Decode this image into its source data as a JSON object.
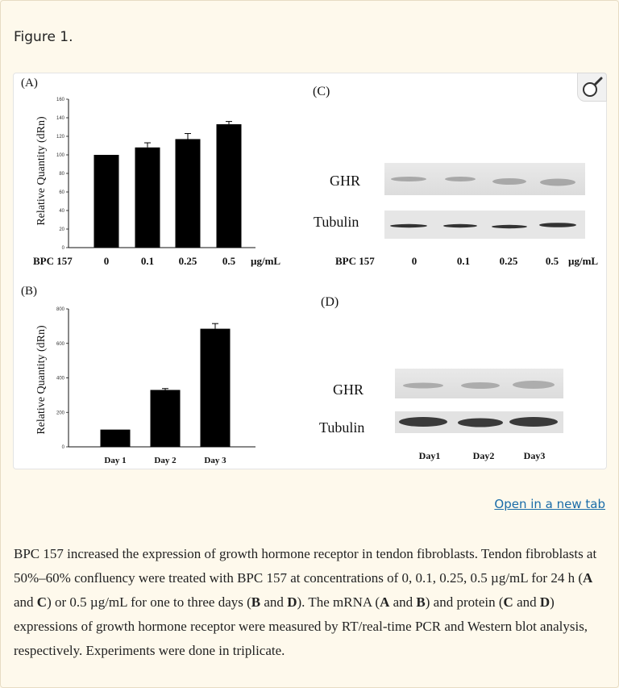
{
  "figure_label": "Figure 1.",
  "open_link": "Open in a new tab",
  "zoom_icon": "magnifier-icon",
  "panels": {
    "a_label": "(A)",
    "b_label": "(B)",
    "c_label": "(C)",
    "d_label": "(D)"
  },
  "blot_c": {
    "rows": [
      "GHR",
      "Tubulin"
    ],
    "x_prefix": "BPC 157",
    "lanes": [
      "0",
      "0.1",
      "0.25",
      "0.5"
    ],
    "unit": "µg/mL"
  },
  "blot_d": {
    "rows": [
      "GHR",
      "Tubulin"
    ],
    "lanes": [
      "Day1",
      "Day2",
      "Day3"
    ]
  },
  "chart_data": [
    {
      "type": "bar",
      "panel": "A",
      "ylabel": "Relative Quantity (dRn)",
      "x_prefix": "BPC 157",
      "unit": "µg/mL",
      "categories": [
        "0",
        "0.1",
        "0.25",
        "0.5"
      ],
      "values": [
        100,
        108,
        117,
        133
      ],
      "errors": [
        0,
        5,
        6,
        3
      ],
      "ylim": [
        0,
        160
      ],
      "yticks": [
        0,
        20,
        40,
        60,
        80,
        100,
        120,
        140,
        160
      ],
      "grid": false
    },
    {
      "type": "bar",
      "panel": "B",
      "ylabel": "Relative Quantity (dRn)",
      "categories": [
        "Day 1",
        "Day 2",
        "Day 3"
      ],
      "values": [
        100,
        330,
        685
      ],
      "errors": [
        0,
        8,
        30
      ],
      "ylim": [
        0,
        800
      ],
      "yticks": [
        0,
        200,
        400,
        600,
        800
      ],
      "grid": false
    }
  ],
  "caption": {
    "p1": "BPC 157 increased the expression of growth hormone receptor in tendon fibroblasts. Tendon fibroblasts at 50%–60% confluency were treated with BPC 157 at concentrations of 0, 0.1, 0.25, 0.5 µg/mL for 24 h (",
    "A": "A",
    "and1": " and ",
    "C": "C",
    "p2": ") or 0.5 µg/mL for one to three days (",
    "B": "B",
    "and2": " and ",
    "D": "D",
    "p3": "). The mRNA (",
    "A2": "A",
    "and3": " and ",
    "B2": "B",
    "p4": ") and protein (",
    "C2": "C",
    "and4": " and ",
    "D2": "D",
    "p5": ") expressions of growth hormone receptor were measured by RT/real-time PCR and Western blot analysis, respectively. Experiments were done in triplicate."
  }
}
